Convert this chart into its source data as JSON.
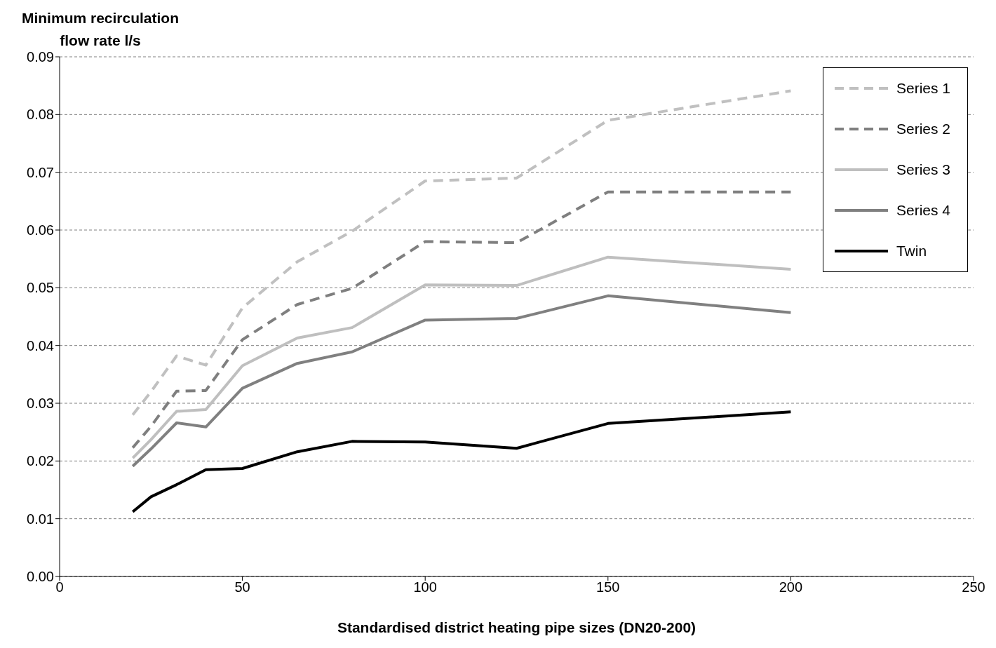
{
  "chart_data": {
    "type": "line",
    "ylabel": "Minimum recirculation flow rate l/s",
    "xlabel": "Standardised district heating pipe sizes (DN20-200)",
    "x": [
      20,
      25,
      32,
      40,
      50,
      65,
      80,
      100,
      125,
      150,
      200
    ],
    "xlim": [
      0,
      250
    ],
    "xticks": [
      0,
      50,
      100,
      150,
      200,
      250
    ],
    "ylim": [
      0,
      0.09
    ],
    "yticks": [
      {
        "value": 0,
        "label": "0.00"
      },
      0.01,
      0.02,
      0.03,
      0.04,
      0.05,
      0.06,
      0.07,
      0.08,
      0.09
    ],
    "grid": "y",
    "legend": "top right",
    "series": [
      {
        "name": "Series 1",
        "color": "#c0c0c0",
        "line_style": "dashed",
        "values": [
          0.028,
          0.032,
          0.0382,
          0.0366,
          0.0465,
          0.0545,
          0.0598,
          0.0685,
          0.069,
          0.079,
          0.0841
        ]
      },
      {
        "name": "Series 2",
        "color": "#7f7f7f",
        "line_style": "dashed",
        "values": [
          0.0223,
          0.026,
          0.0321,
          0.0322,
          0.041,
          0.0471,
          0.0499,
          0.058,
          0.0578,
          0.0666,
          0.0666
        ]
      },
      {
        "name": "Series 3",
        "color": "#bfbfbf",
        "line_style": "solid",
        "values": [
          0.0205,
          0.0237,
          0.0286,
          0.0289,
          0.0365,
          0.0413,
          0.0431,
          0.0505,
          0.0504,
          0.0553,
          0.0532
        ]
      },
      {
        "name": "Series 4",
        "color": "#808080",
        "line_style": "solid",
        "values": [
          0.0191,
          0.0221,
          0.0266,
          0.0259,
          0.0326,
          0.0369,
          0.0389,
          0.0444,
          0.0447,
          0.0486,
          0.0457
        ]
      },
      {
        "name": "Twin",
        "color": "#000000",
        "line_style": "solid",
        "values": [
          0.0112,
          0.0138,
          0.0159,
          0.0185,
          0.0187,
          0.0216,
          0.0234,
          0.0233,
          0.0222,
          0.0265,
          0.0285
        ]
      }
    ]
  }
}
